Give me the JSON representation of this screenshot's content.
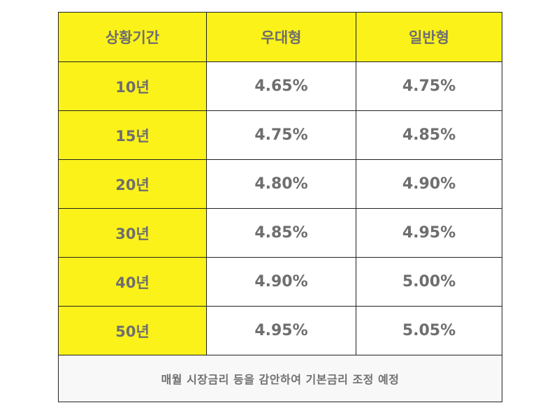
{
  "table": {
    "headers": [
      "상황기간",
      "우대형",
      "일반형"
    ],
    "rows": [
      {
        "period": "10년",
        "preferred": "4.65%",
        "general": "4.75%"
      },
      {
        "period": "15년",
        "preferred": "4.75%",
        "general": "4.85%"
      },
      {
        "period": "20년",
        "preferred": "4.80%",
        "general": "4.90%"
      },
      {
        "period": "30년",
        "preferred": "4.85%",
        "general": "4.95%"
      },
      {
        "period": "40년",
        "preferred": "4.90%",
        "general": "5.00%"
      },
      {
        "period": "50년",
        "preferred": "4.95%",
        "general": "5.05%"
      }
    ],
    "footer_note": "매월 시장금리 등을 감안하여 기본금리 조정 예정"
  },
  "colors": {
    "highlight": "#fbf21a",
    "text": "#6e6e6e",
    "border": "#222222",
    "footer_bg": "#f8f8f8"
  }
}
